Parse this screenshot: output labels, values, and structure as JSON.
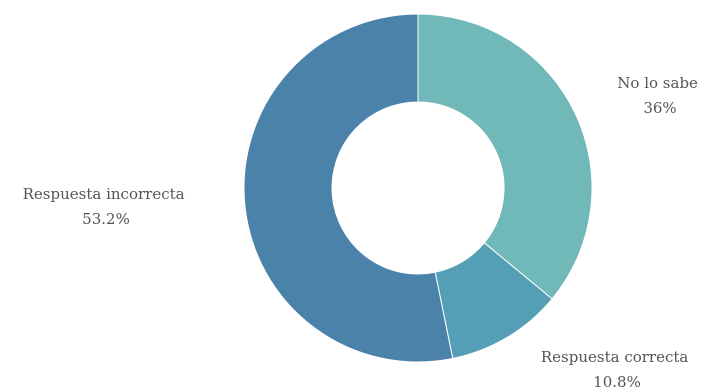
{
  "chart_data": {
    "type": "pie",
    "donut": true,
    "title": "",
    "start_angle_deg": 0,
    "direction": "clockwise",
    "slices": [
      {
        "label": "No lo sabe",
        "value": 36,
        "display": "36%",
        "color": "#71b8b8"
      },
      {
        "label": "Respuesta correcta",
        "value": 10.8,
        "display": "10.8%",
        "color": "#549fb5"
      },
      {
        "label": "Respuesta incorrecta",
        "value": 53.2,
        "display": "53.2%",
        "color": "#4a82a9"
      }
    ]
  }
}
